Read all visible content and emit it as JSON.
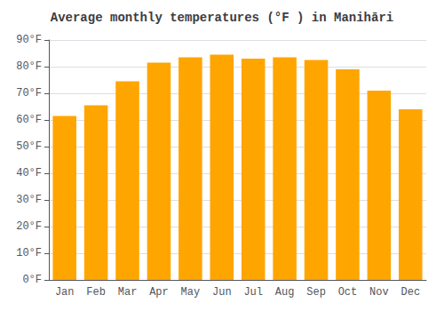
{
  "chart_data": {
    "type": "bar",
    "title": "Average monthly temperatures (°F ) in Manihāri",
    "categories": [
      "Jan",
      "Feb",
      "Mar",
      "Apr",
      "May",
      "Jun",
      "Jul",
      "Aug",
      "Sep",
      "Oct",
      "Nov",
      "Dec"
    ],
    "values": [
      61.5,
      65.5,
      74.5,
      81.5,
      83.5,
      84.5,
      83.0,
      83.5,
      82.5,
      79.0,
      71.0,
      64.0
    ],
    "color": "#FFA500",
    "ylim": [
      0,
      90
    ],
    "yticks": [
      {
        "value": 0,
        "label": "0°F"
      },
      {
        "value": 10,
        "label": "10°F"
      },
      {
        "value": 20,
        "label": "20°F"
      },
      {
        "value": 30,
        "label": "30°F"
      },
      {
        "value": 40,
        "label": "40°F"
      },
      {
        "value": 50,
        "label": "50°F"
      },
      {
        "value": 60,
        "label": "60°F"
      },
      {
        "value": 70,
        "label": "70°F"
      },
      {
        "value": 80,
        "label": "80°F"
      },
      {
        "value": 90,
        "label": "90°F"
      }
    ],
    "grid": true
  }
}
